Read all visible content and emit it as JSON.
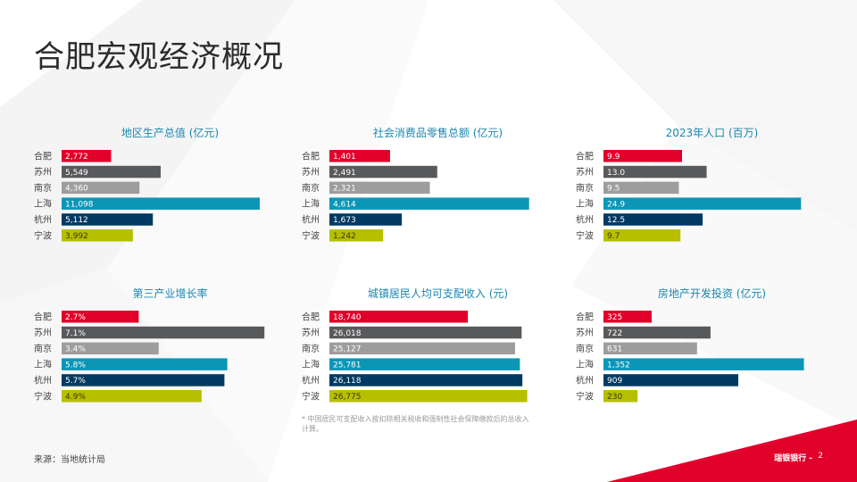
{
  "page": {
    "title": "合肥宏观经济概况",
    "source": "来源：当地统计局",
    "footnote": "* 中国居民可支配收入按扣除相关税收和强制性社会保障缴款后的总收入计算。",
    "brand": "瑞银银行 -",
    "page_number": "2"
  },
  "colors": {
    "accent_red": "#e1002a",
    "title_blue": "#1a86b0"
  },
  "chart_data": [
    {
      "type": "bar",
      "title": "地区生产总值 (亿元)",
      "categories": [
        "合肥",
        "苏州",
        "南京",
        "上海",
        "杭州",
        "宁波"
      ],
      "values": [
        2772,
        5549,
        4360,
        11098,
        5112,
        3992
      ],
      "value_labels": [
        "2,772",
        "5,549",
        "4,360",
        "11,098",
        "5,112",
        "3,992"
      ],
      "colors": [
        "#e1002a",
        "#58595b",
        "#9d9d9d",
        "#0b96b6",
        "#003a62",
        "#b6bf00"
      ],
      "xlim": [
        0,
        12000
      ]
    },
    {
      "type": "bar",
      "title": "社会消费品零售总额 (亿元)",
      "categories": [
        "合肥",
        "苏州",
        "南京",
        "上海",
        "杭州",
        "宁波"
      ],
      "values": [
        1401,
        2491,
        2321,
        4614,
        1673,
        1242
      ],
      "value_labels": [
        "1,401",
        "2,491",
        "2,321",
        "4,614",
        "1,673",
        "1,242"
      ],
      "colors": [
        "#e1002a",
        "#58595b",
        "#9d9d9d",
        "#0b96b6",
        "#003a62",
        "#b6bf00"
      ],
      "xlim": [
        0,
        4950
      ]
    },
    {
      "type": "bar",
      "title": "2023年人口 (百万)",
      "categories": [
        "合肥",
        "苏州",
        "南京",
        "上海",
        "杭州",
        "宁波"
      ],
      "values": [
        9.9,
        13.0,
        9.5,
        24.9,
        12.5,
        9.7
      ],
      "value_labels": [
        "9.9",
        "13.0",
        "9.5",
        "24.9",
        "12.5",
        "9.7"
      ],
      "colors": [
        "#e1002a",
        "#58595b",
        "#9d9d9d",
        "#0b96b6",
        "#003a62",
        "#b6bf00"
      ],
      "xlim": [
        0,
        27
      ]
    },
    {
      "type": "bar",
      "title": "第三产业增长率",
      "categories": [
        "合肥",
        "苏州",
        "南京",
        "上海",
        "杭州",
        "宁波"
      ],
      "values": [
        2.7,
        7.1,
        3.4,
        5.8,
        5.7,
        4.9
      ],
      "value_labels": [
        "2.7%",
        "7.1%",
        "3.4%",
        "5.8%",
        "5.7%",
        "4.9%"
      ],
      "colors": [
        "#e1002a",
        "#58595b",
        "#9d9d9d",
        "#0b96b6",
        "#003a62",
        "#b6bf00"
      ],
      "xlim": [
        0,
        7.5
      ]
    },
    {
      "type": "bar",
      "title": "城镇居民人均可支配收入 (元)",
      "categories": [
        "合肥",
        "苏州",
        "南京",
        "上海",
        "杭州",
        "宁波"
      ],
      "values": [
        18740,
        26018,
        25127,
        25781,
        26118,
        26775
      ],
      "value_labels": [
        "18,740",
        "26,018",
        "25,127",
        "25,781",
        "26,118",
        "26,775"
      ],
      "colors": [
        "#e1002a",
        "#58595b",
        "#9d9d9d",
        "#0b96b6",
        "#003a62",
        "#b6bf00"
      ],
      "xlim": [
        0,
        29000
      ]
    },
    {
      "type": "bar",
      "title": "房地产开发投资 (亿元)",
      "categories": [
        "合肥",
        "苏州",
        "南京",
        "上海",
        "杭州",
        "宁波"
      ],
      "values": [
        325,
        722,
        631,
        1352,
        909,
        230
      ],
      "value_labels": [
        "325",
        "722",
        "631",
        "1,352",
        "909",
        "230"
      ],
      "colors": [
        "#e1002a",
        "#58595b",
        "#9d9d9d",
        "#0b96b6",
        "#003a62",
        "#b6bf00"
      ],
      "xlim": [
        0,
        1445
      ]
    }
  ]
}
